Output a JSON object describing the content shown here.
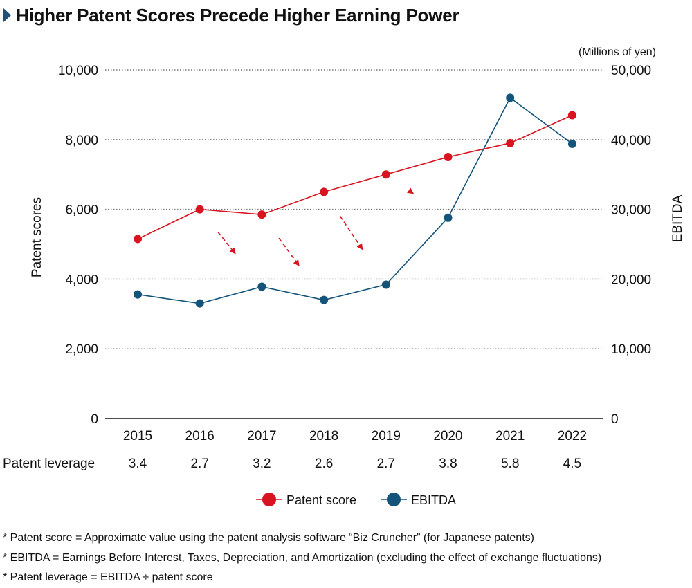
{
  "title": "Higher Patent Scores Precede Higher Earning Power",
  "chart_data": {
    "type": "line",
    "x": [
      "2015",
      "2016",
      "2017",
      "2018",
      "2019",
      "2020",
      "2021",
      "2022"
    ],
    "y_left_label": "Patent scores",
    "y_right_label": "EBITDA",
    "y_right_unit": "(Millions of yen)",
    "y_left_lim": [
      0,
      10000
    ],
    "y_right_lim": [
      0,
      50000
    ],
    "y_left_ticks": [
      "0",
      "2,000",
      "4,000",
      "6,000",
      "8,000",
      "10,000"
    ],
    "y_right_ticks": [
      "0",
      "10,000",
      "20,000",
      "30,000",
      "40,000",
      "50,000"
    ],
    "grid": "dotted horizontal",
    "series": [
      {
        "name": "Patent score",
        "axis": "left",
        "color": "#d7141f",
        "values": [
          5150,
          6000,
          5850,
          6500,
          7000,
          7500,
          7900,
          8700
        ]
      },
      {
        "name": "EBITDA",
        "axis": "right",
        "color": "#14547a",
        "values": [
          17800,
          16500,
          18900,
          17000,
          19200,
          28800,
          46000,
          39400
        ]
      }
    ],
    "row_label": "Patent leverage",
    "leverage": [
      "3.4",
      "2.7",
      "3.2",
      "2.6",
      "2.7",
      "3.8",
      "5.8",
      "4.5"
    ],
    "lag_arrows": [
      {
        "from": "2016",
        "to": "2017"
      },
      {
        "from": "2017",
        "to": "2018"
      },
      {
        "from": "2018",
        "to": "2019"
      },
      {
        "from": "2019",
        "to": "2020"
      }
    ],
    "arrow_color": "#d7141f",
    "legend_position": "bottom-center"
  },
  "notes": [
    "* Patent score = Approximate value using the patent analysis software “Biz Cruncher” (for Japanese patents)",
    "* EBITDA = Earnings Before Interest, Taxes, Depreciation, and Amortization (excluding the effect of exchange fluctuations)",
    "* Patent leverage = EBITDA ÷ patent score"
  ]
}
